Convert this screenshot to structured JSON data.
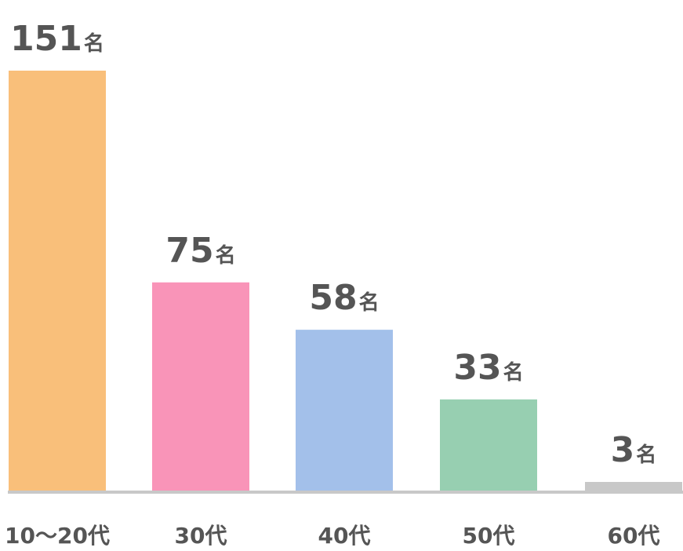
{
  "chart_data": {
    "type": "bar",
    "categories": [
      "10〜20代",
      "30代",
      "40代",
      "50代",
      "60代"
    ],
    "values": [
      151,
      75,
      58,
      33,
      3
    ],
    "unit": "名",
    "colors": [
      "#F9BF7A",
      "#F994B8",
      "#A3C0EA",
      "#97CFB1",
      "#C8C8C8"
    ],
    "axis_color": "#C8C8C8",
    "label_color": "#555555",
    "ylim": [
      0,
      151
    ],
    "grid": false,
    "legend": "none"
  }
}
